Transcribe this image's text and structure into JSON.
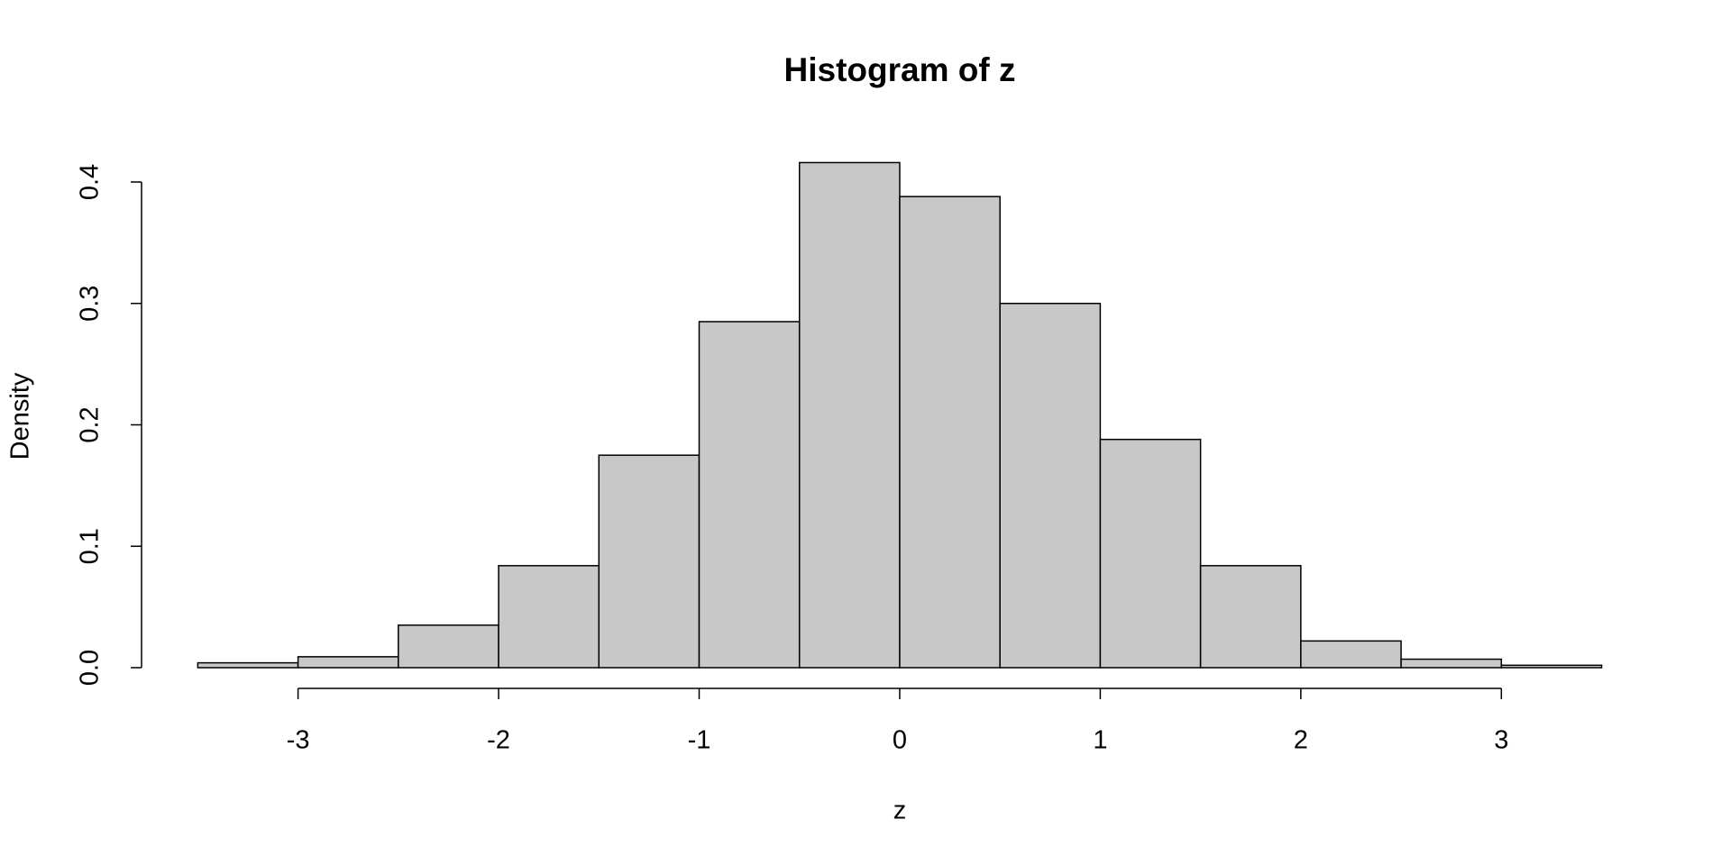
{
  "chart_data": {
    "type": "histogram",
    "title": "Histogram of z",
    "x_label": "z",
    "y_label": "Density",
    "bins": [
      -3.5,
      -3,
      -2.5,
      -2,
      -1.5,
      -1,
      -0.5,
      0,
      0.5,
      1,
      1.5,
      2,
      2.5,
      3,
      3.5
    ],
    "values": [
      0.004,
      0.009,
      0.035,
      0.084,
      0.175,
      0.285,
      0.416,
      0.388,
      0.3,
      0.188,
      0.084,
      0.022,
      0.007,
      0.002
    ],
    "color": "#c8c8c8",
    "xlim": [
      -3,
      3
    ],
    "xticks": [
      -3,
      -2,
      -1,
      0,
      1,
      2,
      3
    ],
    "ylim": [
      0,
      0.4
    ],
    "yticks": [
      {
        "value": 0,
        "label": "0.0"
      },
      0.1,
      0.2,
      0.3,
      0.4
    ]
  }
}
